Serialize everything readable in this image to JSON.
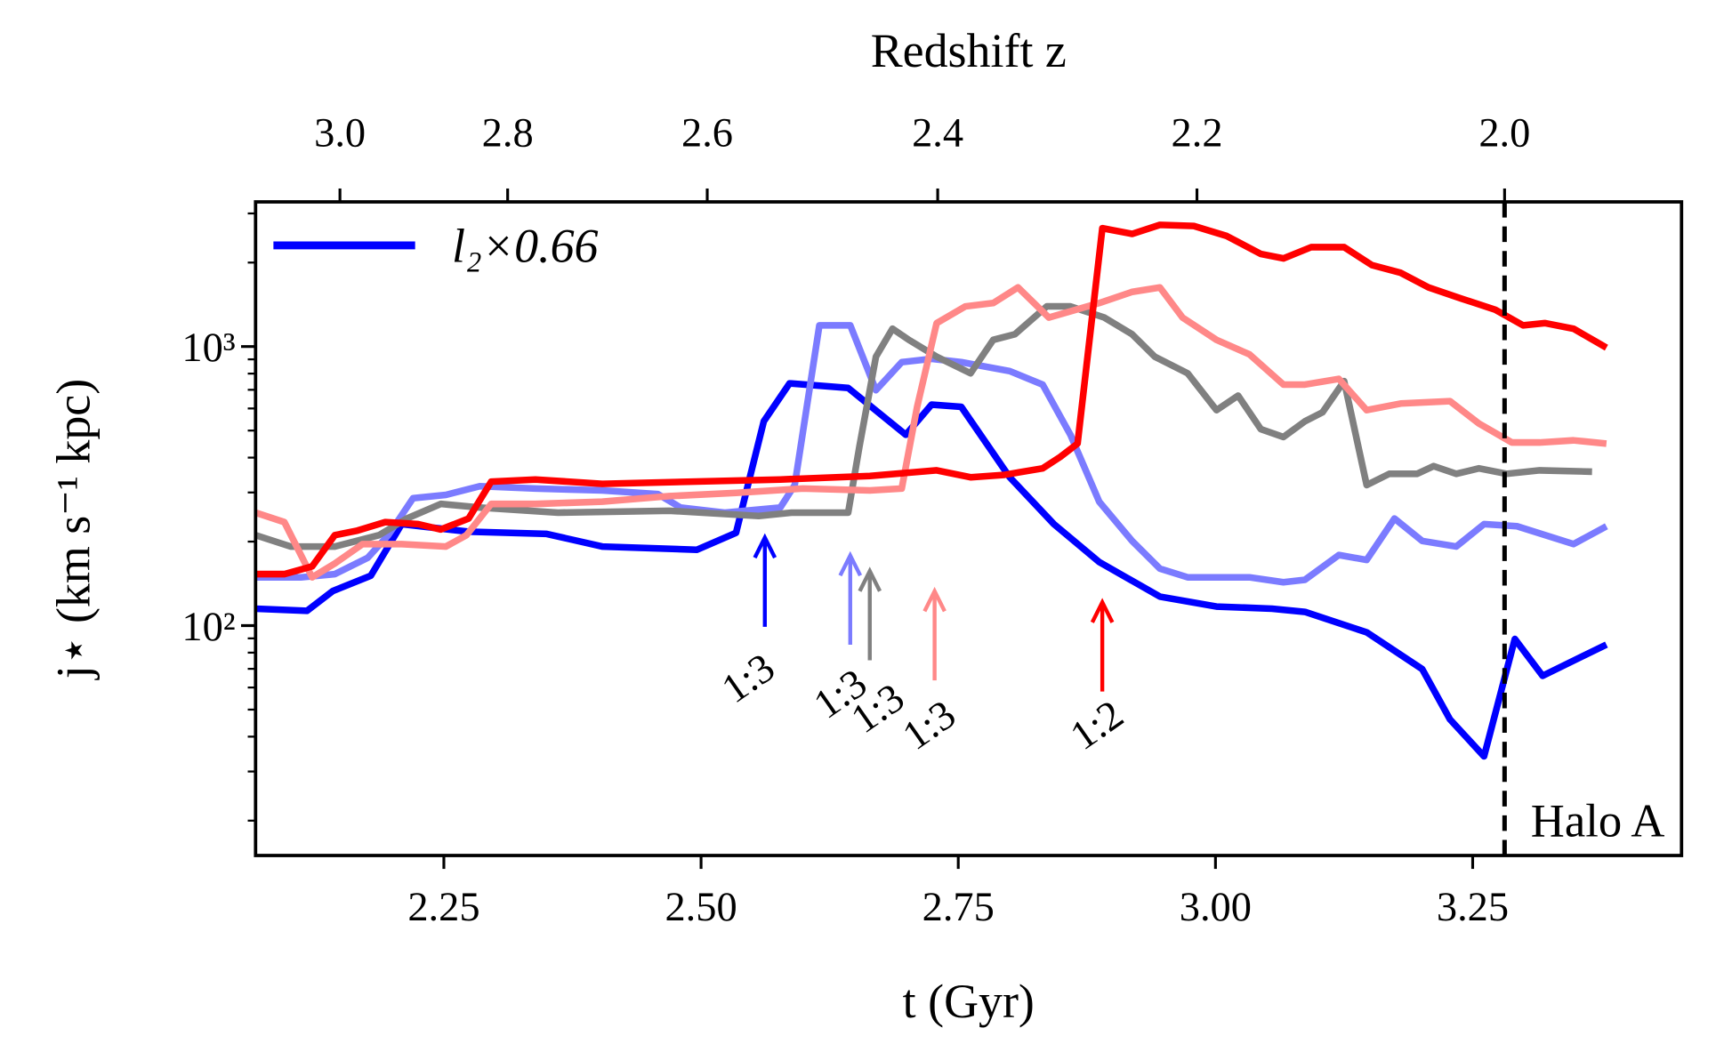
{
  "chart_data": {
    "type": "line",
    "xlabel": "t (Gyr)",
    "x2label": "Redshift z",
    "ylabel": "j⋆ (km s⁻¹ kpc)",
    "xlim": [
      2.067,
      3.453
    ],
    "ylim": [
      15,
      3300
    ],
    "yscale": "log",
    "xticks": [
      {
        "value": 2.25,
        "label": "2.25"
      },
      {
        "value": 2.5,
        "label": "2.50"
      },
      {
        "value": 2.75,
        "label": "2.75"
      },
      {
        "value": 3.0,
        "label": "3.00"
      },
      {
        "value": 3.25,
        "label": "3.25"
      }
    ],
    "x2ticks": [
      {
        "value": 2.149,
        "label": "3.0"
      },
      {
        "value": 2.312,
        "label": "2.8"
      },
      {
        "value": 2.506,
        "label": "2.6"
      },
      {
        "value": 2.73,
        "label": "2.4"
      },
      {
        "value": 2.982,
        "label": "2.2"
      },
      {
        "value": 3.281,
        "label": "2.0"
      }
    ],
    "yticks": [
      {
        "value": 100,
        "label": "10²"
      },
      {
        "value": 1000,
        "label": "10³"
      }
    ],
    "yminorticks": [
      20,
      30,
      40,
      50,
      60,
      70,
      80,
      90,
      200,
      300,
      400,
      500,
      600,
      700,
      800,
      900,
      2000,
      3000
    ],
    "vline": 3.281,
    "legend": "upper left",
    "text": "Halo A",
    "text_color": "#d62728",
    "annotations": [
      {
        "text": "1:3",
        "x": 2.562,
        "color": "#0000ff"
      },
      {
        "text": "1:3",
        "x": 2.645,
        "color": "#7b7bff"
      },
      {
        "text": "1:3",
        "x": 2.664,
        "color": "#808080"
      },
      {
        "text": "1:3",
        "x": 2.727,
        "color": "#ff8888"
      },
      {
        "text": "1:2",
        "x": 2.89,
        "color": "#ff0000"
      }
    ],
    "series": [
      {
        "name": "l₂×0.66",
        "color": "#0000ff",
        "x": [
          2.067,
          2.117,
          2.142,
          2.179,
          2.209,
          2.274,
          2.35,
          2.404,
          2.496,
          2.534,
          2.561,
          2.586,
          2.643,
          2.699,
          2.724,
          2.753,
          2.8,
          2.843,
          2.887,
          2.946,
          3.001,
          3.055,
          3.087,
          3.147,
          3.201,
          3.228,
          3.261,
          3.291,
          3.318,
          3.38
        ],
        "values": [
          115,
          113,
          133,
          151,
          231,
          217,
          213,
          192,
          187,
          215,
          540,
          738,
          711,
          483,
          619,
          608,
          340,
          231,
          169,
          127,
          117,
          115,
          112,
          94.6,
          69.8,
          46.1,
          34,
          89.5,
          66.1,
          85.5
        ]
      },
      {
        "color": "#7b7bff",
        "x": [
          2.067,
          2.111,
          2.144,
          2.176,
          2.196,
          2.22,
          2.252,
          2.285,
          2.339,
          2.404,
          2.458,
          2.48,
          2.523,
          2.577,
          2.591,
          2.615,
          2.645,
          2.67,
          2.695,
          2.724,
          2.753,
          2.8,
          2.832,
          2.859,
          2.887,
          2.919,
          2.946,
          2.973,
          3.033,
          3.066,
          3.087,
          3.12,
          3.147,
          3.174,
          3.201,
          3.234,
          3.261,
          3.293,
          3.348,
          3.38
        ],
        "values": [
          149,
          149,
          153,
          175,
          211,
          286,
          294,
          316,
          310,
          305,
          296,
          265,
          254,
          265,
          319,
          1191,
          1191,
          698,
          879,
          904,
          879,
          817,
          731,
          483,
          278,
          201,
          160,
          149,
          149,
          143,
          146,
          179,
          172,
          242,
          201,
          192,
          231,
          227,
          196,
          227
        ]
      },
      {
        "color": "#808080",
        "x": [
          2.067,
          2.101,
          2.144,
          2.187,
          2.214,
          2.247,
          2.285,
          2.361,
          2.469,
          2.556,
          2.588,
          2.615,
          2.643,
          2.654,
          2.67,
          2.686,
          2.702,
          2.729,
          2.762,
          2.784,
          2.805,
          2.836,
          2.859,
          2.892,
          2.919,
          2.941,
          2.973,
          3.001,
          3.022,
          3.044,
          3.066,
          3.087,
          3.104,
          3.125,
          3.147,
          3.169,
          3.196,
          3.212,
          3.234,
          3.256,
          3.283,
          3.315,
          3.366
        ],
        "values": [
          211,
          192,
          192,
          211,
          242,
          273,
          265,
          254,
          258,
          247,
          254,
          254,
          254,
          441,
          920,
          1159,
          1057,
          920,
          802,
          1057,
          1107,
          1393,
          1393,
          1271,
          1107,
          920,
          802,
          592,
          667,
          506,
          474,
          540,
          581,
          752,
          319,
          350,
          350,
          373,
          350,
          366,
          350,
          360,
          356
        ]
      },
      {
        "color": "#ff8888",
        "x": [
          2.067,
          2.095,
          2.122,
          2.144,
          2.171,
          2.209,
          2.252,
          2.272,
          2.296,
          2.339,
          2.404,
          2.469,
          2.534,
          2.599,
          2.664,
          2.695,
          2.71,
          2.729,
          2.757,
          2.784,
          2.808,
          2.838,
          2.887,
          2.919,
          2.946,
          2.968,
          3.001,
          3.033,
          3.066,
          3.087,
          3.12,
          3.147,
          3.18,
          3.228,
          3.256,
          3.288,
          3.315,
          3.348,
          3.38
        ],
        "values": [
          254,
          235,
          149,
          167,
          196,
          196,
          192,
          211,
          273,
          273,
          278,
          291,
          299,
          310,
          305,
          310,
          608,
          1213,
          1393,
          1432,
          1629,
          1271,
          1432,
          1570,
          1629,
          1271,
          1057,
          938,
          731,
          731,
          766,
          592,
          625,
          637,
          530,
          453,
          453,
          461,
          449
        ]
      },
      {
        "color": "#ff0000",
        "x": [
          2.067,
          2.095,
          2.122,
          2.144,
          2.166,
          2.193,
          2.225,
          2.247,
          2.274,
          2.296,
          2.339,
          2.404,
          2.491,
          2.577,
          2.664,
          2.729,
          2.762,
          2.795,
          2.832,
          2.849,
          2.866,
          2.89,
          2.919,
          2.946,
          2.979,
          3.011,
          3.044,
          3.066,
          3.093,
          3.125,
          3.152,
          3.18,
          3.207,
          3.239,
          3.272,
          3.299,
          3.32,
          3.348,
          3.38
        ],
        "values": [
          153,
          153,
          163,
          211,
          219,
          235,
          231,
          221,
          242,
          328,
          334,
          322,
          328,
          334,
          344,
          360,
          340,
          347,
          366,
          402,
          449,
          2655,
          2535,
          2729,
          2704,
          2489,
          2148,
          2070,
          2270,
          2270,
          1959,
          1837,
          1629,
          1486,
          1355,
          1191,
          1213,
          1159,
          991
        ]
      }
    ]
  }
}
